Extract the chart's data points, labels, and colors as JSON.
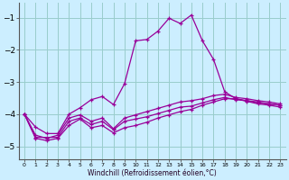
{
  "xlabel": "Windchill (Refroidissement éolien,°C)",
  "bg_color": "#cceeff",
  "grid_color": "#99cccc",
  "line_color": "#990099",
  "xlim": [
    -0.5,
    23.5
  ],
  "ylim": [
    -5.4,
    -0.55
  ],
  "yticks": [
    -5,
    -4,
    -3,
    -2,
    -1
  ],
  "xtick_labels": [
    "0",
    "1",
    "2",
    "3",
    "4",
    "5",
    "6",
    "7",
    "8",
    "9",
    "10",
    "11",
    "12",
    "13",
    "14",
    "15",
    "16",
    "17",
    "18",
    "19",
    "20",
    "21",
    "22",
    "23"
  ],
  "series": [
    [
      -4.0,
      -4.4,
      -4.6,
      -4.6,
      -4.0,
      -3.8,
      -3.55,
      -3.45,
      -3.7,
      -3.05,
      -1.72,
      -1.68,
      -1.42,
      -1.02,
      -1.18,
      -0.92,
      -1.72,
      -2.3,
      -3.3,
      -3.52,
      -3.6,
      -3.68,
      -3.72,
      -3.78
    ],
    [
      -4.0,
      -4.72,
      -4.72,
      -4.72,
      -4.22,
      -4.12,
      -4.32,
      -4.22,
      -4.48,
      -4.22,
      -4.15,
      -4.08,
      -3.98,
      -3.88,
      -3.78,
      -3.75,
      -3.65,
      -3.55,
      -3.48,
      -3.55,
      -3.58,
      -3.65,
      -3.68,
      -3.72
    ],
    [
      -4.0,
      -4.75,
      -4.82,
      -4.75,
      -4.35,
      -4.15,
      -4.42,
      -4.35,
      -4.58,
      -4.42,
      -4.35,
      -4.25,
      -4.12,
      -4.02,
      -3.92,
      -3.85,
      -3.72,
      -3.62,
      -3.52,
      -3.52,
      -3.58,
      -3.62,
      -3.68,
      -3.72
    ],
    [
      -4.0,
      -4.65,
      -4.75,
      -4.65,
      -4.12,
      -4.02,
      -4.22,
      -4.12,
      -4.45,
      -4.12,
      -4.02,
      -3.92,
      -3.82,
      -3.72,
      -3.62,
      -3.58,
      -3.52,
      -3.42,
      -3.38,
      -3.48,
      -3.52,
      -3.58,
      -3.62,
      -3.68
    ]
  ]
}
